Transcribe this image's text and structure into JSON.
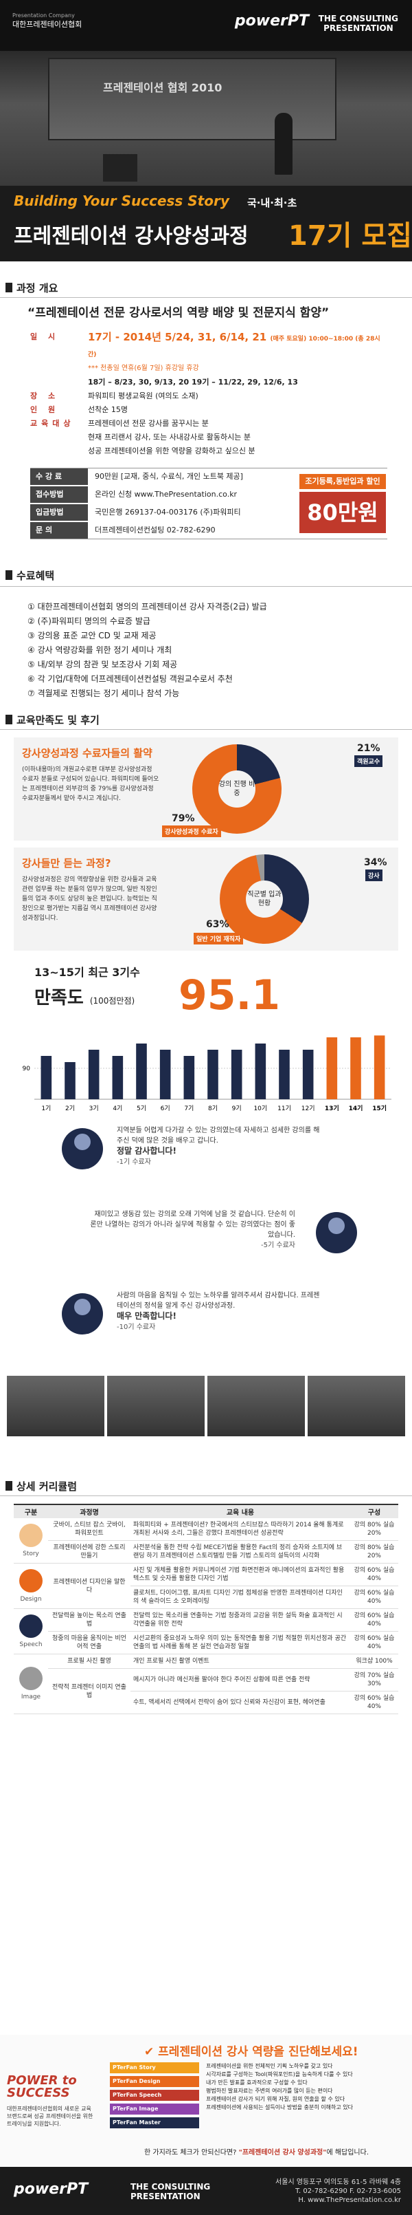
{
  "header": {
    "org_sub": "Presentation Company",
    "org_name": "대한프레젠테이션협회",
    "brand": "powerPT",
    "brand2_line1": "THE CONSULTING",
    "brand2_line2": "PRESENTATION"
  },
  "hero": {
    "screen_text": "프레젠테이션 협회 2010"
  },
  "title": {
    "subtitle": "Building Your Success Story",
    "korean_tag": "국·내·최·초",
    "main": "프레젠테이션 강사양성과정",
    "cohort": "17기 모집"
  },
  "overview": {
    "heading": "과정 개요",
    "quote": "“프레젠테이션 전문 강사로서의 역량 배양 및 전문지식 함양”",
    "rows": [
      {
        "k": "일 시",
        "v": "17기 - 2014년 5/24, 31, 6/14, 21",
        "extra": "(매주 토요일) 10:00~18:00 (총 28시간)",
        "highlight": true
      },
      {
        "k": "",
        "v": "*** 천총일 연휴(6월 7일) 휴강일 휴강",
        "extra": "",
        "note": true
      },
      {
        "k": "",
        "v": "18기 – 8/23, 30, 9/13, 20   19기 – 11/22, 29, 12/6, 13",
        "extra": ""
      },
      {
        "k": "장 소",
        "v": "파워피티 평생교육원 (여의도 소재)",
        "extra": ""
      },
      {
        "k": "인 원",
        "v": "선착순 15명",
        "extra": ""
      },
      {
        "k": "교육대상",
        "v": "프레젠테이션 전문 강사를 꿈꾸시는 분",
        "extra": ""
      },
      {
        "k": "",
        "v": "현재 프리랜서 강사, 또는 사내강사로 활동하시는 분",
        "extra": ""
      },
      {
        "k": "",
        "v": "성공 프레젠테이션을 위한 역량을 강화하고 싶으신 분",
        "extra": ""
      }
    ],
    "fees": [
      {
        "k": "수 강 료",
        "v": "90만원 [교재, 중식, 수료식, 개인 노트북 제공]"
      },
      {
        "k": "접수방법",
        "v": "온라인 신청  www.ThePresentation.co.kr"
      },
      {
        "k": "입금방법",
        "v": "국민은행 269137-04-003176 (주)파워피티"
      },
      {
        "k": "문 의",
        "v": "더프레젠테이션컨설팅  02-782-6290"
      }
    ],
    "promo_label": "조기등록,동반입과 할인",
    "promo_price": "80만원"
  },
  "benefits": {
    "heading": "수료혜택",
    "items": [
      "① 대한프레젠테이션협회 명의의 프레젠테이션 강사 자격증(2급) 발급",
      "② (주)파워피티 명의의 수료증 발급",
      "③ 강의용 표준 교안 CD 및 교재 제공",
      "④ 강사 역량강화를 위한 정기 세미나 개최",
      "⑤ 내/외부 강의 참관 및 보조강사 기회 제공",
      "⑥ 각 기업/대학에 더프레젠테이션컨설팅 객원교수로서 추천",
      "⑦ 격월제로 진행되는 정기 세미나 참석 가능"
    ]
  },
  "satisfaction": {
    "heading": "교육만족도 및 후기",
    "card1": {
      "title": "강사양성과정 수료자들의 활약",
      "body": "(이하내용마)의 개원교수로편 대부분 강사양성과정 수료자 분들로 구성되어 있습니다. 파워피티에 들어오는 프레젠테이션 외부강의 중 79%를 강사양성과정 수료자분들께서 맡아 주시고 계십니다.",
      "center": "강의 진행 비중",
      "pct_big": "79%",
      "tag_big": "강사양성과정 수료자",
      "pct_small": "21%",
      "tag_small": "객원교수"
    },
    "card2": {
      "title": "강사들만 듣는 과정?",
      "body": "강사양성과정은 강의 역량향상을 위한 강사들과 교육 관련 업무를 하는 분들의 업무가 많으며, 일반 직장인들의 업과 추이도 상당히 높은 편입니다. 능력있는 직장인으로 평가받는 지름길 역시 프레젠테이션 강사양성과정입니다.",
      "center": "직군별 입과 현황",
      "pct_big": "63%",
      "tag_big": "일반 기업 재직자",
      "pct_small": "34%",
      "tag_small": "강사"
    }
  },
  "bar_section": {
    "line1": "13~15기 최근 3기수",
    "line2_word": "만족도",
    "line2_small": "(100점만점)",
    "big_value": "95.1"
  },
  "chart_data": {
    "type": "bar",
    "categories": [
      "1기",
      "2기",
      "3기",
      "4기",
      "5기",
      "6기",
      "7기",
      "8기",
      "9기",
      "10기",
      "11기",
      "12기",
      "13기",
      "14기",
      "15기"
    ],
    "values": [
      92,
      91,
      93,
      92,
      94,
      93,
      92,
      93,
      93,
      94,
      93,
      93,
      95,
      95,
      95.3
    ],
    "highlight_colors": {
      "normal": "#1e2a4a",
      "recent": "#e8681b"
    },
    "yticks": [
      "90"
    ],
    "ylim": [
      85,
      97
    ]
  },
  "testimonials": [
    {
      "text": "지역분들 어렵게 다가갈 수 있는 강의였는데 자세하고 섬세한 강의를 해주신 덕에 많은 것을 배우고 갑니다.",
      "emph": "정말 감사합니다!",
      "by": "-1기 수료자"
    },
    {
      "text": "재미있고 생동감 있는 강의로 오래 기억에 남을 것 같습니다. 단순히 이론만 나열하는 강의가 아니라 실무에 적용할 수 있는 강의였다는 점이 좋았습니다.",
      "emph": "",
      "by": "-5기 수료자"
    },
    {
      "text": "사람의 마음을 움직일 수 있는 노하우를 알려주셔서 감사합니다. 프레젠테이션의 정석을 알게 주신 강사양성과정.",
      "emph": "매우 만족합니다!",
      "by": "-10기 수료자"
    }
  ],
  "curriculum": {
    "heading": "상세 커리큘럼",
    "headers": [
      "구분",
      "과정명",
      "교육 내용",
      "구성"
    ],
    "rows": [
      {
        "cat": "Story",
        "proc": "굿바이, 스티브 잡스 굿바이, 파워포인트",
        "content": "파워피티와 + 프레젠테이션? 한국에서의 스티브잡스 따라하기 2014 올해 통계로 개최된 서사와 소리, 그들은 강했다 프레젠테이션 성공전략",
        "time": "강의 80% 실습 20%"
      },
      {
        "cat": "",
        "proc": "프레젠테이션에 강한 스토리 만들기",
        "content": "사전분석을 통한 전략 수립 MECE기법을 활용한 Fact의 정리 승자와 소트지에 브랜딩 하기 프레젠테이션 스토리텔링 만들 기법 스토리의 설득이의 시각화",
        "time": "강의 80% 실습 20%"
      },
      {
        "cat": "Design",
        "proc": "프레젠테이션 디자인을 말한다",
        "content": "사진 및 개체를 활용한 커뮤니케이션 기법 화면전환과 애니메이션의 효과적인 활용 텍스트 및 숫자를 활용한 디자인 기법",
        "time": "강의 60% 실습 40%"
      },
      {
        "cat": "",
        "proc": "",
        "content": "클로처트, 다이어그램, 표/차트 디자인 기법 점체성을 반영한 프레젠테이션 디자인의 색 슬라이드 소 오퍼레이팅",
        "time": "강의 60% 실습 40%"
      },
      {
        "cat": "Speech",
        "proc": "전달력을 높이는 목소리 연출법",
        "content": "전달력 있는 목소리를 연출하는 기법 청중과의 교감을 위한 설득 화술 효과적인 시각연출을 위한 전략",
        "time": "강의 60% 실습 40%"
      },
      {
        "cat": "",
        "proc": "청중의 마음을 움직이는 비언어적 연출",
        "content": "시선교환의 중요성과 노하우 의미 있는 동작연출 활용 기법 적절한 위치선정과 공간연출의 법 사례를 통해 본 실전 연습과정 일절",
        "time": "강의 60% 실습 40%"
      },
      {
        "cat": "Image",
        "proc": "프로필 사진 촬영",
        "content": "개인 프로필 사진 촬영 이벤트",
        "time": "워크샵 100%"
      },
      {
        "cat": "",
        "proc": "전략적 프레젠터 이미지 연출법",
        "content": "메시지가 아니라 메신저를 팔아야 한다 주어진 상황에 따른 연출 전략",
        "time": "강의 70% 실습 30%"
      },
      {
        "cat": "",
        "proc": "",
        "content": "수트, 액세서리 선택에서 전략이 숨어 있다 신뢰와 자신감이 표현, 헤어연출",
        "time": "강의 60% 실습 40%"
      }
    ]
  },
  "bottom": {
    "power_title1": "POWER to",
    "power_title2": "SUCCESS",
    "power_desc": "대한프레젠테이션협회의 새로운 교육 브랜드로써 성공 프레젠테이션을 위한 트레이닝을 지원합니다.",
    "diag_title": "프레젠테이션 강사 역량을 진단해보세요!",
    "cards": [
      "PTerFan Story",
      "PTerFan Design",
      "PTerFan Speech",
      "PTerFan Image",
      "PTerFan Master"
    ],
    "diag_items": [
      "프레젠테이션을 위한 전체적인 기획 노하우를 갖고 있다",
      "시각자료를 구성하는 Tool(파워포인트)을 능숙하게 다룰 수 있다",
      "내가 만든 발표를 효과적으로 구성할 수 있다",
      "평범하진 발표자료는 주변의 여러가를 많이 듣는 편이다",
      "프레젠테이션 강사가 되기 위해 자질, 원의 연출을 할 수 있다",
      "프레젠테이션에 사용되는 설득이나 방법을 충분히 이해하고 있다"
    ],
    "diag_foot_prefix": "한 가지라도 체크가 안되신다면?",
    "diag_foot_emph": "\"프레젠테이션 강사 양성과정\"",
    "diag_foot_suffix": "에 해답입니다."
  },
  "footer": {
    "brand": "powerPT",
    "brand2_line1": "THE CONSULTING",
    "brand2_line2": "PRESENTATION",
    "addr1": "서울시 영등포구 여의도동 61-5 라바웨 4층",
    "addr2": "T. 02-782-6290 F. 02-733-6005",
    "addr3": "H. www.ThePresentation.co.kr"
  }
}
